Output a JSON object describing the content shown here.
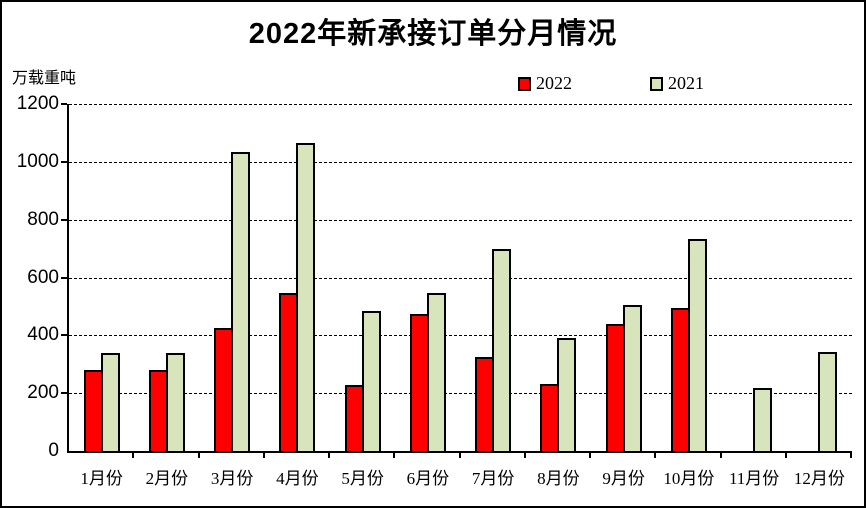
{
  "window": {
    "background": "#ffffff",
    "frame_color": "#000000"
  },
  "chart_data": {
    "type": "bar",
    "title": "2022年新承接订单分月情况",
    "ylabel": "万载重吨",
    "xlabel": "",
    "categories": [
      "1月份",
      "2月份",
      "3月份",
      "4月份",
      "5月份",
      "6月份",
      "7月份",
      "8月份",
      "9月份",
      "10月份",
      "11月份",
      "12月份"
    ],
    "series": [
      {
        "name": "2022",
        "color": "#ff0000",
        "values": [
          281,
          281,
          426,
          546,
          229,
          475,
          326,
          233,
          440,
          495,
          0,
          0
        ]
      },
      {
        "name": "2021",
        "color": "#d8e4bc",
        "values": [
          340,
          340,
          1035,
          1066,
          485,
          548,
          699,
          391,
          505,
          733,
          217,
          343
        ]
      }
    ],
    "ylim": [
      0,
      1200
    ],
    "ytick_step": 200,
    "yticks": [
      0,
      200,
      400,
      600,
      800,
      1000,
      1200
    ],
    "grid": "horizontal-dashed",
    "gridline_color": "#000000",
    "bar_border_color": "#000000",
    "legend_position": "top-center"
  }
}
